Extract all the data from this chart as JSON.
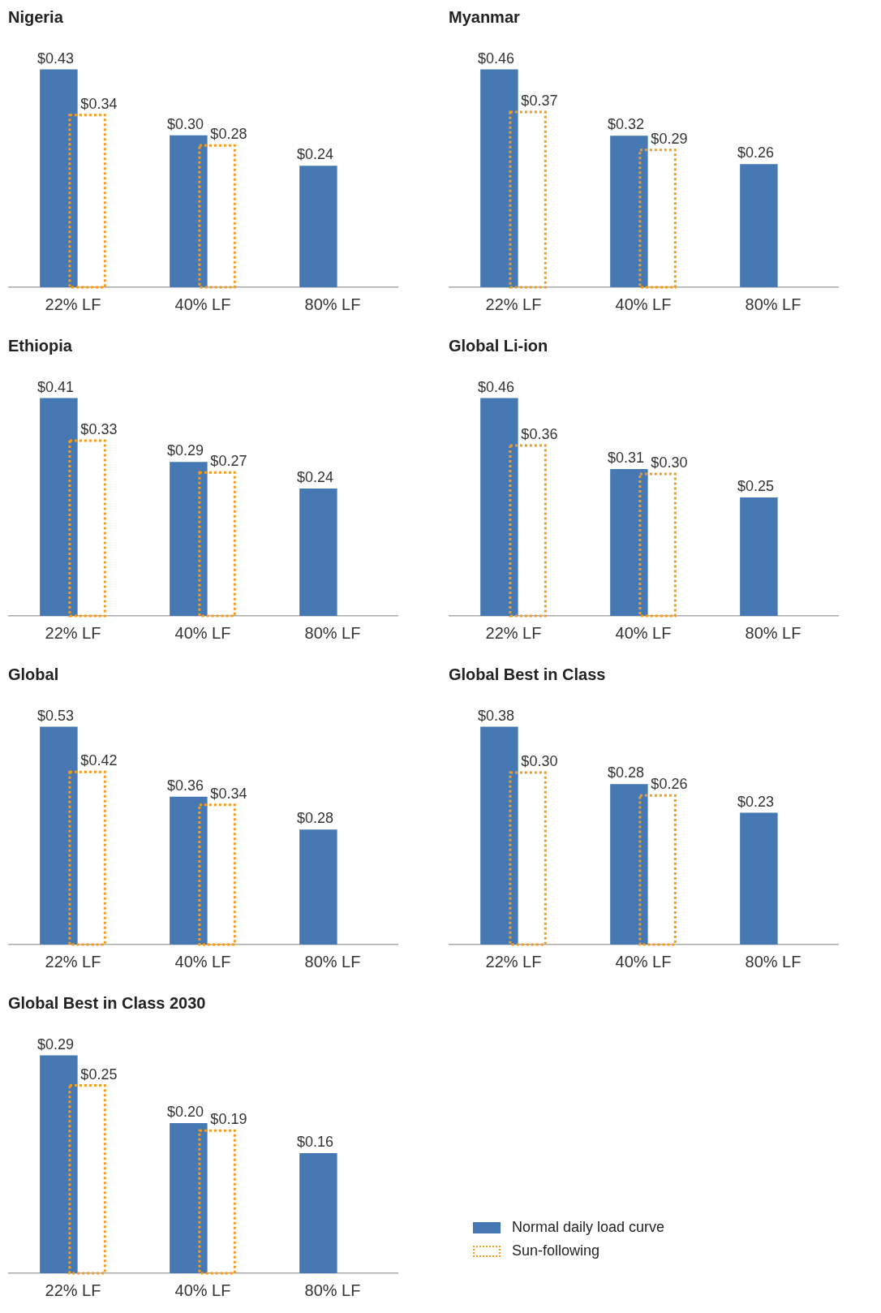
{
  "chart_data": [
    {
      "type": "bar",
      "title": "Nigeria",
      "categories": [
        "22% LF",
        "40% LF",
        "80% LF"
      ],
      "series": [
        {
          "color": "#4679b4",
          "values": [
            0.43,
            0.3,
            0.24
          ],
          "value_labels": [
            "$0.43",
            "$0.30",
            "$0.24"
          ]
        },
        {
          "color": "#f59c1a",
          "line_style": "dotted",
          "values": [
            0.34,
            0.28,
            null
          ],
          "value_labels": [
            "$0.34",
            "$0.28",
            null
          ]
        }
      ]
    },
    {
      "type": "bar",
      "title": "Myanmar",
      "categories": [
        "22% LF",
        "40% LF",
        "80% LF"
      ],
      "series": [
        {
          "color": "#4679b4",
          "values": [
            0.46,
            0.32,
            0.26
          ],
          "value_labels": [
            "$0.46",
            "$0.32",
            "$0.26"
          ]
        },
        {
          "color": "#f59c1a",
          "line_style": "dotted",
          "values": [
            0.37,
            0.29,
            null
          ],
          "value_labels": [
            "$0.37",
            "$0.29",
            null
          ]
        }
      ]
    },
    {
      "type": "bar",
      "title": "Ethiopia",
      "categories": [
        "22% LF",
        "40% LF",
        "80% LF"
      ],
      "series": [
        {
          "color": "#4679b4",
          "values": [
            0.41,
            0.29,
            0.24
          ],
          "value_labels": [
            "$0.41",
            "$0.29",
            "$0.24"
          ]
        },
        {
          "color": "#f59c1a",
          "line_style": "dotted",
          "values": [
            0.33,
            0.27,
            null
          ],
          "value_labels": [
            "$0.33",
            "$0.27",
            null
          ]
        }
      ]
    },
    {
      "type": "bar",
      "title": "Global Li-ion",
      "categories": [
        "22% LF",
        "40% LF",
        "80% LF"
      ],
      "series": [
        {
          "color": "#4679b4",
          "values": [
            0.46,
            0.31,
            0.25
          ],
          "value_labels": [
            "$0.46",
            "$0.31",
            "$0.25"
          ]
        },
        {
          "color": "#f59c1a",
          "line_style": "dotted",
          "values": [
            0.36,
            0.3,
            null
          ],
          "value_labels": [
            "$0.36",
            "$0.30",
            null
          ]
        }
      ]
    },
    {
      "type": "bar",
      "title": "Global",
      "categories": [
        "22% LF",
        "40% LF",
        "80% LF"
      ],
      "series": [
        {
          "color": "#4679b4",
          "values": [
            0.53,
            0.36,
            0.28
          ],
          "value_labels": [
            "$0.53",
            "$0.36",
            "$0.28"
          ]
        },
        {
          "color": "#f59c1a",
          "line_style": "dotted",
          "values": [
            0.42,
            0.34,
            null
          ],
          "value_labels": [
            "$0.42",
            "$0.34",
            null
          ]
        }
      ]
    },
    {
      "type": "bar",
      "title": "Global Best in Class",
      "categories": [
        "22% LF",
        "40% LF",
        "80% LF"
      ],
      "series": [
        {
          "color": "#4679b4",
          "values": [
            0.38,
            0.28,
            0.23
          ],
          "value_labels": [
            "$0.38",
            "$0.28",
            "$0.23"
          ]
        },
        {
          "color": "#f59c1a",
          "line_style": "dotted",
          "values": [
            0.3,
            0.26,
            null
          ],
          "value_labels": [
            "$0.30",
            "$0.26",
            null
          ]
        }
      ]
    },
    {
      "type": "bar",
      "title": "Global Best in Class 2030",
      "categories": [
        "22% LF",
        "40% LF",
        "80% LF"
      ],
      "legend": "bottom right",
      "series": [
        {
          "name": "Normal daily load curve",
          "color": "#4679b4",
          "values": [
            0.29,
            0.2,
            0.16
          ],
          "value_labels": [
            "$0.29",
            "$0.20",
            "$0.16"
          ]
        },
        {
          "name": "Sun-following",
          "color": "#f59c1a",
          "line_style": "dotted",
          "values": [
            0.25,
            0.19,
            null
          ],
          "value_labels": [
            "$0.25",
            "$0.19",
            null
          ]
        }
      ]
    }
  ]
}
